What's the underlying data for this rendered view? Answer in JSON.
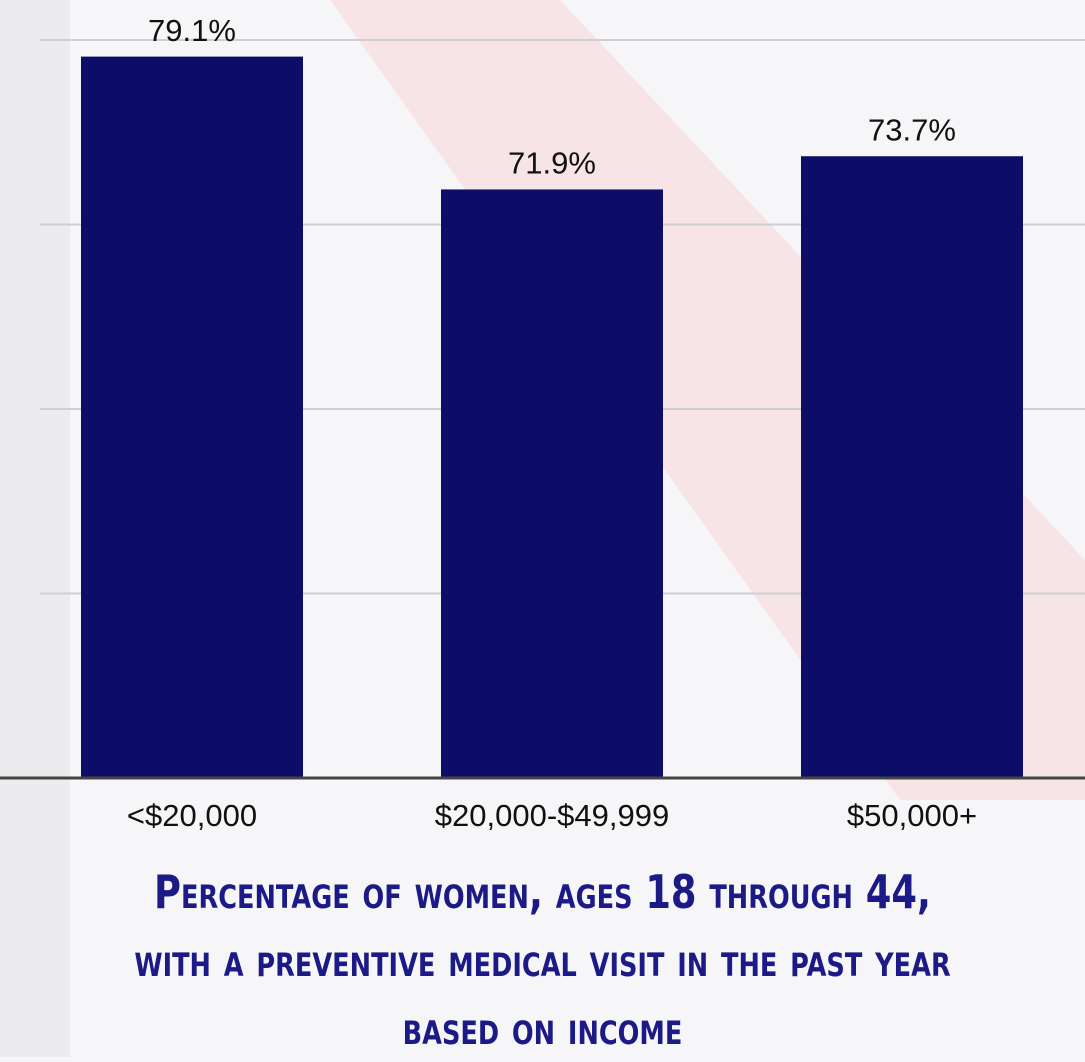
{
  "chart_data": {
    "type": "bar",
    "title": "Percentage of women, ages 18 through 44, with a preventive medical visit in the past year based on income",
    "categories": [
      "<$20,000",
      "$20,000-$49,999",
      "$50,000+"
    ],
    "values": [
      79.1,
      71.9,
      73.7
    ],
    "value_labels": [
      "79.1%",
      "71.9%",
      "73.7%"
    ],
    "color": "#0d0d68",
    "ylim": [
      40,
      80
    ],
    "yticks": [
      50,
      60,
      70,
      80
    ],
    "grid": true
  }
}
